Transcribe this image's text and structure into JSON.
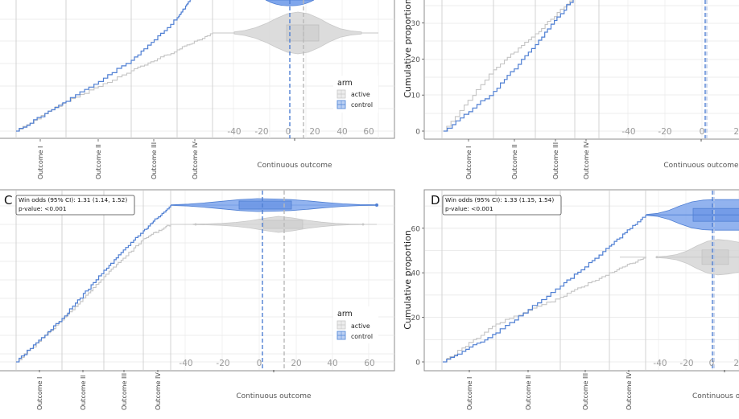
{
  "figure": {
    "description": "Four-panel maraca plots (cropped view). Each panel: cumulative proportion step curves for ordinal outcomes plus violin/box plots of a continuous outcome, split by arm."
  },
  "legend": {
    "title": "arm",
    "entries": [
      {
        "label": "active",
        "color": "#c8c8c8"
      },
      {
        "label": "control",
        "color": "#5b8dd9"
      }
    ]
  },
  "colors": {
    "active_line": "#c4c4c4",
    "control_line": "#4f7fd3",
    "active_fill": "#d6d6d6",
    "control_fill": "#7fa6ec",
    "grid_major": "#d3d3d3",
    "grid_minor": "#ededed",
    "axis_text": "#9a9a9a",
    "frame": "#8c8c8c"
  },
  "chart_data": [
    {
      "panel": "A",
      "type": "line",
      "panel_label": "",
      "annotation": [],
      "ylabel": "",
      "y_ticks": [],
      "ylim": [
        0,
        75
      ],
      "x_categories": [
        "Outcome I",
        "Outcome II",
        "Outcome III",
        "Outcome IV"
      ],
      "x_category_proportions": {
        "active": [
          0.21,
          0.28,
          0.19,
          0.16
        ],
        "control": [
          0.21,
          0.28,
          0.19,
          0.16
        ]
      },
      "continuous_axis": {
        "label": "Continuous outcome",
        "ticks": [
          -40,
          -20,
          0,
          20,
          40,
          60
        ],
        "range": [
          -52,
          72
        ]
      },
      "series": [
        {
          "name": "active",
          "end_cumulative": 28,
          "x_step_endpoints": [
            0,
            12,
            18,
            24,
            28
          ]
        },
        {
          "name": "control",
          "end_cumulative": 45,
          "x_step_endpoints": [
            0,
            8,
            22,
            36,
            45
          ]
        }
      ],
      "violins": [
        {
          "arm": "active",
          "median": 10,
          "q1": 0,
          "q3": 21,
          "min": -42,
          "max": 56,
          "mean": 10
        },
        {
          "arm": "control",
          "median": 0,
          "q1": -8,
          "q3": 10,
          "min": -30,
          "max": 40,
          "mean": 0
        }
      ],
      "legend_position": "right"
    },
    {
      "panel": "B",
      "type": "line",
      "panel_label": "",
      "annotation": [],
      "ylabel": "Cumulative proportion",
      "y_ticks": [
        0,
        10,
        20,
        30
      ],
      "ylim": [
        -2,
        36
      ],
      "x_categories": [
        "Outcome I",
        "Outcome II",
        "Outcome III",
        "Outcome IV"
      ],
      "continuous_axis": {
        "label": "Continuous outcome",
        "ticks": [
          -40,
          -20,
          0,
          20
        ],
        "range": [
          -52,
          72
        ]
      },
      "series": [
        {
          "name": "active",
          "points": [
            [
              0,
              0
            ],
            [
              0.15,
              11
            ],
            [
              0.29,
              25
            ],
            [
              0.41,
              36
            ]
          ]
        },
        {
          "name": "control",
          "points": [
            [
              0,
              0
            ],
            [
              0.15,
              7
            ],
            [
              0.29,
              22
            ],
            [
              0.41,
              36
            ]
          ]
        }
      ],
      "reference_lines": [
        {
          "arm": "control",
          "x": 0
        }
      ]
    },
    {
      "panel": "C",
      "type": "line",
      "panel_label": "C",
      "annotation": [
        "Win odds (95% CI): 1.31 (1.14, 1.52)",
        "p-value: <0.001"
      ],
      "ylabel": "",
      "y_ticks": [],
      "x_categories": [
        "Outcome I",
        "Outcome II",
        "Outcome III",
        "Outcome IV"
      ],
      "continuous_axis": {
        "label": "Continuous outcome",
        "ticks": [
          -40,
          -20,
          0,
          20,
          40,
          60
        ],
        "range": [
          -52,
          72
        ]
      },
      "series": [
        {
          "name": "active",
          "end_cumulative": 61
        },
        {
          "name": "control",
          "end_cumulative": 69
        }
      ],
      "violins": [
        {
          "arm": "active",
          "median": 13,
          "q1": 1,
          "q3": 22,
          "min": -44,
          "max": 63,
          "mean": 13
        },
        {
          "arm": "control",
          "median": 0,
          "q1": -12,
          "q3": 17,
          "min": -48,
          "max": 63,
          "mean": 0
        }
      ]
    },
    {
      "panel": "D",
      "type": "line",
      "panel_label": "D",
      "annotation": [
        "Win odds (95% CI): 1.33 (1.15, 1.54)",
        "p-value: <0.001"
      ],
      "ylabel": "Cumulative proportion",
      "y_ticks": [
        0,
        20,
        40,
        60
      ],
      "ylim": [
        -3,
        77
      ],
      "x_categories": [
        "Outcome I",
        "Outcome II",
        "Outcome III",
        "Outcome IV"
      ],
      "continuous_axis": {
        "label": "Continuous outcome",
        "ticks": [
          -40,
          -20,
          0,
          20
        ],
        "range": [
          -48,
          30
        ]
      },
      "series": [
        {
          "name": "active",
          "points": [
            [
              0,
              0
            ],
            [
              0.17,
              17
            ],
            [
              0.37,
              29
            ],
            [
              0.53,
              40
            ],
            [
              0.65,
              47
            ]
          ]
        },
        {
          "name": "control",
          "points": [
            [
              0,
              0
            ],
            [
              0.17,
              13
            ],
            [
              0.37,
              28
            ],
            [
              0.53,
              52
            ],
            [
              0.65,
              66
            ]
          ]
        }
      ],
      "violins": [
        {
          "arm": "active",
          "median": 0,
          "q1": -10,
          "q3": 15,
          "min": -30,
          "max": 40,
          "mean": 0
        },
        {
          "arm": "control",
          "median": 0,
          "q1": -10,
          "q3": 20,
          "min": -30,
          "max": 45,
          "mean": 0
        }
      ]
    }
  ]
}
